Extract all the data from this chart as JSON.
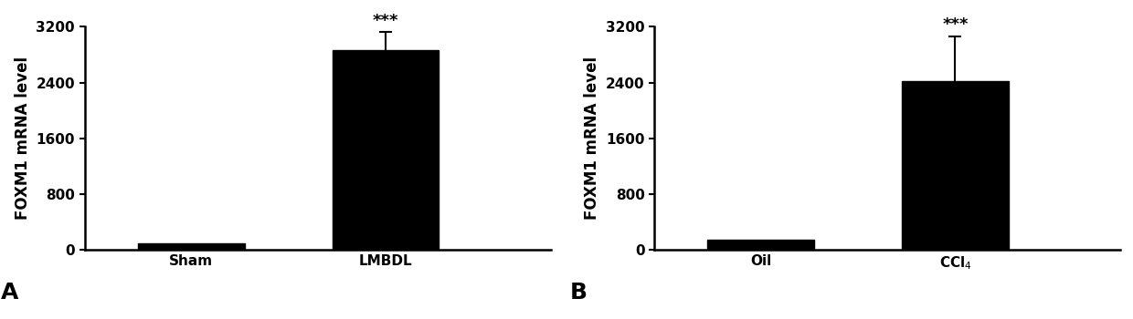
{
  "panel_A": {
    "categories": [
      "Sham",
      "LMBDL"
    ],
    "values": [
      90,
      2870
    ],
    "errors": [
      15,
      250
    ],
    "label": "A",
    "ylabel": "FOXM1 mRNA level",
    "ylim": [
      0,
      3200
    ],
    "yticks": [
      0,
      800,
      1600,
      2400,
      3200
    ],
    "significance": [
      false,
      true
    ],
    "sig_label": "***"
  },
  "panel_B": {
    "categories": [
      "Oil",
      "CCl$_4$"
    ],
    "values": [
      145,
      2420
    ],
    "errors": [
      15,
      640
    ],
    "label": "B",
    "ylabel": "FOXM1 mRNA level",
    "ylim": [
      0,
      3200
    ],
    "yticks": [
      0,
      800,
      1600,
      2400,
      3200
    ],
    "significance": [
      false,
      true
    ],
    "sig_label": "***"
  },
  "bar_color": "#000000",
  "bar_width": 0.55,
  "bar_positions": [
    1,
    2
  ],
  "background_color": "#ffffff",
  "fontsize_ticks": 11,
  "fontsize_ylabel": 12,
  "fontsize_label": 18,
  "fontsize_sig": 13,
  "capsize": 5,
  "elinewidth": 1.5,
  "ecapthick": 1.5
}
